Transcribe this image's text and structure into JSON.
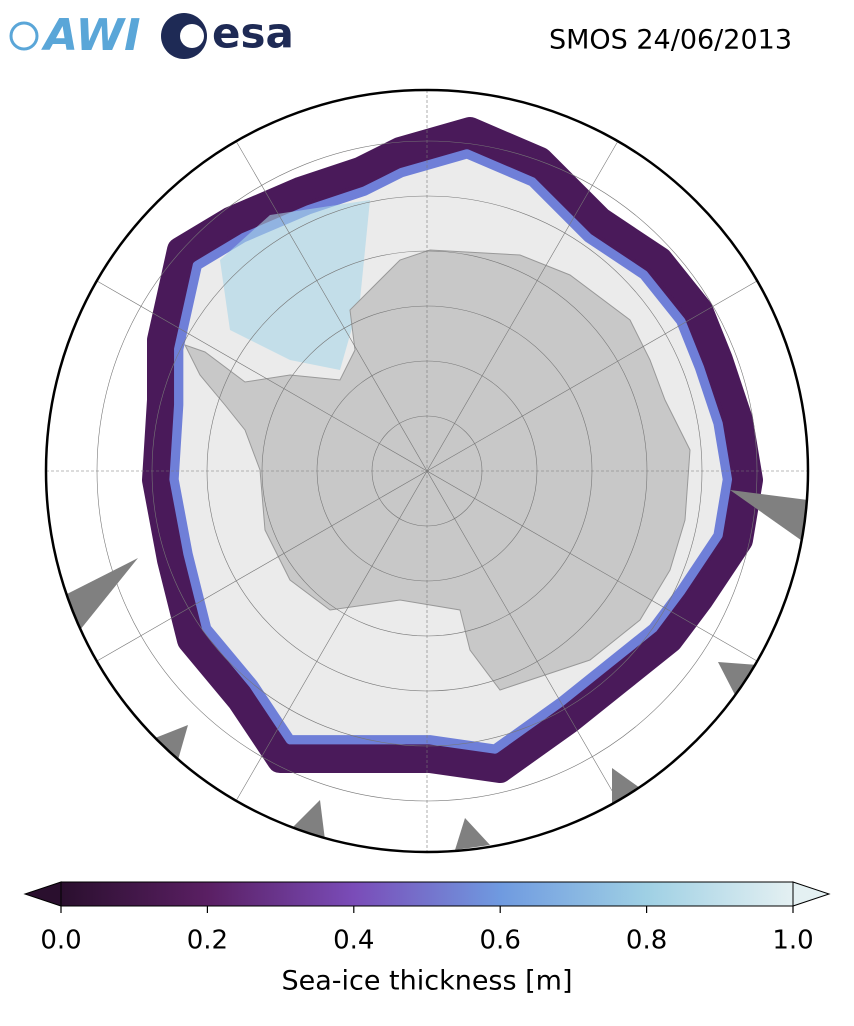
{
  "header": {
    "logos": [
      "AWI",
      "esa"
    ],
    "title": "SMOS 24/06/2013"
  },
  "colorbar": {
    "label": "Sea-ice thickness [m]",
    "range": [
      0,
      1
    ],
    "ticks": [
      {
        "value": 0,
        "label": "0.0"
      },
      {
        "value": 0.2,
        "label": "0.2"
      },
      {
        "value": 0.4,
        "label": "0.4"
      },
      {
        "value": 0.6,
        "label": "0.6"
      },
      {
        "value": 0.8,
        "label": "0.8"
      },
      {
        "value": 1,
        "label": "1.0"
      }
    ],
    "colors": [
      "#2a0f2e",
      "#5a1f63",
      "#7a4cb8",
      "#6f9ae0",
      "#9fd0e4",
      "#e4f0f2"
    ]
  }
}
